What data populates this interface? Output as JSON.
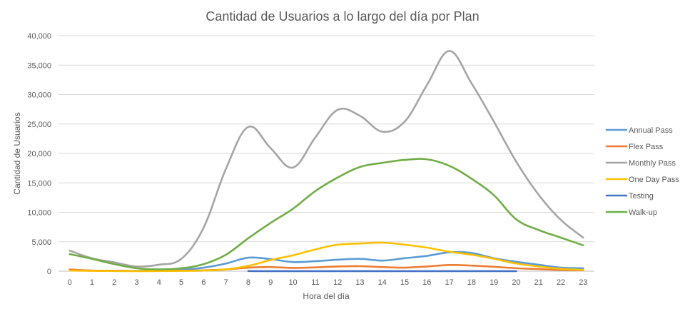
{
  "chart_data": {
    "type": "line",
    "title": "Cantidad de Usuarios a lo largo del día por Plan",
    "xlabel": "Hora del día",
    "ylabel": "Cantidad de Usuarios",
    "x": [
      0,
      1,
      2,
      3,
      4,
      5,
      6,
      7,
      8,
      9,
      10,
      11,
      12,
      13,
      14,
      15,
      16,
      17,
      18,
      19,
      20,
      21,
      22,
      23
    ],
    "x_tick_labels": [
      "0",
      "1",
      "2",
      "3",
      "4",
      "5",
      "6",
      "7",
      "8",
      "9",
      "10",
      "11",
      "12",
      "13",
      "14",
      "15",
      "16",
      "17",
      "18",
      "19",
      "20",
      "21",
      "22",
      "23"
    ],
    "ylim": [
      0,
      40000
    ],
    "y_ticks": [
      0,
      5000,
      10000,
      15000,
      20000,
      25000,
      30000,
      35000,
      40000
    ],
    "y_tick_labels": [
      "0",
      "5,000",
      "10,000",
      "15,000",
      "20,000",
      "25,000",
      "30,000",
      "35,000",
      "40,000"
    ],
    "grid": true,
    "legend_position": "right",
    "series": [
      {
        "name": "Annual Pass",
        "color": "#5b9bd5",
        "x": [
          0,
          1,
          2,
          3,
          4,
          5,
          6,
          7,
          8,
          9,
          10,
          11,
          12,
          13,
          14,
          15,
          16,
          17,
          18,
          19,
          20,
          21,
          22,
          23
        ],
        "values": [
          200,
          100,
          80,
          60,
          150,
          250,
          600,
          1300,
          2300,
          2050,
          1550,
          1700,
          1950,
          2100,
          1800,
          2200,
          2600,
          3200,
          3100,
          2200,
          1600,
          1100,
          600,
          500
        ]
      },
      {
        "name": "Flex Pass",
        "color": "#ed7d31",
        "x": [
          0,
          1,
          2,
          3,
          4,
          5,
          6,
          7,
          8,
          9,
          10,
          11,
          12,
          13,
          14,
          15,
          16,
          17,
          18,
          19,
          20,
          21,
          22,
          23
        ],
        "values": [
          300,
          100,
          50,
          30,
          40,
          80,
          150,
          300,
          600,
          700,
          550,
          650,
          800,
          850,
          700,
          600,
          800,
          1050,
          950,
          750,
          500,
          350,
          200,
          150
        ]
      },
      {
        "name": "Monthly Pass",
        "color": "#a5a5a5",
        "x": [
          0,
          1,
          2,
          3,
          4,
          5,
          6,
          7,
          8,
          9,
          10,
          11,
          12,
          13,
          14,
          15,
          16,
          17,
          18,
          19,
          20,
          21,
          22,
          23
        ],
        "values": [
          3500,
          2200,
          1500,
          800,
          1100,
          2100,
          7400,
          17400,
          24500,
          20900,
          17600,
          22700,
          27400,
          26400,
          23700,
          25400,
          31600,
          37400,
          31900,
          25400,
          18600,
          13000,
          8700,
          5700
        ]
      },
      {
        "name": "One Day Pass",
        "color": "#ffc000",
        "x": [
          0,
          1,
          2,
          3,
          4,
          5,
          6,
          7,
          8,
          9,
          10,
          11,
          12,
          13,
          14,
          15,
          16,
          17,
          18,
          19,
          20,
          21,
          22,
          23
        ],
        "values": [
          100,
          50,
          20,
          10,
          20,
          50,
          100,
          300,
          900,
          1900,
          2700,
          3700,
          4500,
          4700,
          4850,
          4500,
          4000,
          3300,
          2800,
          2100,
          1300,
          800,
          400,
          200
        ]
      },
      {
        "name": "Testing",
        "color": "#4472c4",
        "x": [
          8,
          9,
          10,
          11,
          12,
          13,
          14,
          15,
          16,
          17,
          18,
          19,
          20
        ],
        "values": [
          20,
          10,
          10,
          10,
          10,
          10,
          10,
          10,
          10,
          10,
          10,
          10,
          10
        ]
      },
      {
        "name": "Walk-up",
        "color": "#70ad47",
        "x": [
          0,
          1,
          2,
          3,
          4,
          5,
          6,
          7,
          8,
          9,
          10,
          11,
          12,
          13,
          14,
          15,
          16,
          17,
          18,
          19,
          20,
          21,
          22,
          23
        ],
        "values": [
          2900,
          2100,
          1200,
          500,
          300,
          500,
          1200,
          2800,
          5600,
          8200,
          10600,
          13600,
          15900,
          17700,
          18400,
          18900,
          19000,
          17900,
          15700,
          12900,
          8800,
          7000,
          5700,
          4400
        ]
      }
    ]
  }
}
